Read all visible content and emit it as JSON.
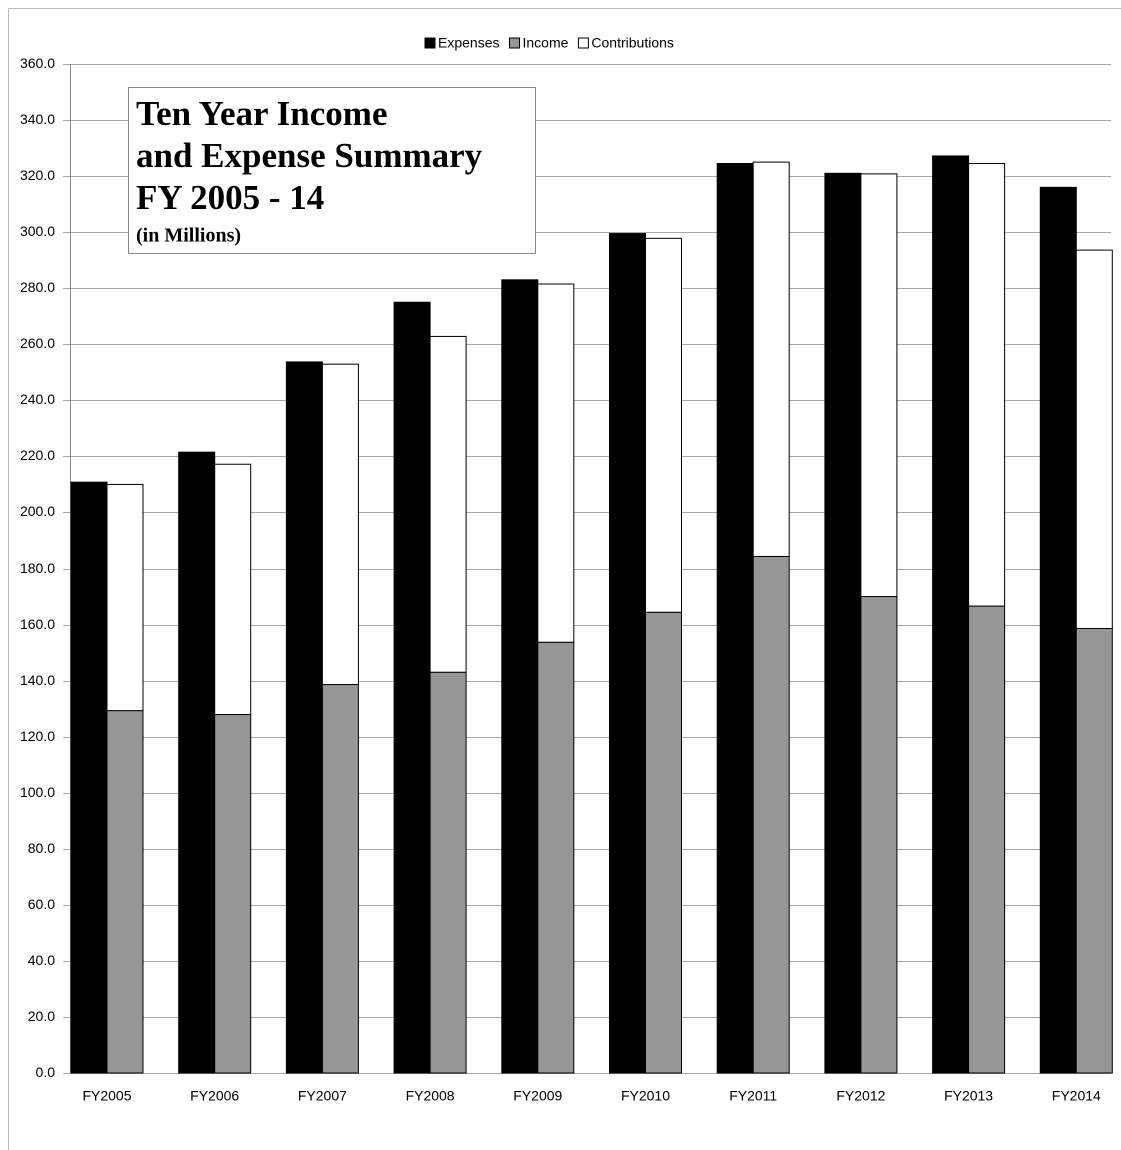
{
  "chart_data": {
    "type": "bar",
    "title": [
      "Ten Year Income",
      "and Expense Summary",
      "FY 2005 - 14"
    ],
    "subtitle": "(in Millions)",
    "categories": [
      "FY2005",
      "FY2006",
      "FY2007",
      "FY2008",
      "FY2009",
      "FY2010",
      "FY2011",
      "FY2012",
      "FY2013",
      "FY2014"
    ],
    "series": [
      {
        "name": "Expenses",
        "color": "#000000",
        "stack": "a",
        "values": [
          210.8,
          221.5,
          253.7,
          275.0,
          283.0,
          299.5,
          324.5,
          321.0,
          327.2,
          316.0
        ]
      },
      {
        "name": "Income",
        "color": "#969696",
        "stack": "b",
        "values": [
          129.3,
          127.9,
          138.6,
          143.0,
          153.7,
          164.4,
          184.3,
          170.0,
          166.6,
          158.6
        ]
      },
      {
        "name": "Contributions",
        "color": "#ffffff",
        "stack": "b",
        "values": [
          80.7,
          89.3,
          114.3,
          119.8,
          127.8,
          133.4,
          140.7,
          150.8,
          157.9,
          135.0
        ]
      }
    ],
    "ylim": [
      0,
      360
    ],
    "yticks": [
      {
        "value": 0,
        "label": "0.0"
      },
      {
        "value": 20,
        "label": "20.0"
      },
      {
        "value": 40,
        "label": "40.0"
      },
      {
        "value": 60,
        "label": "60.0"
      },
      {
        "value": 80,
        "label": "80.0"
      },
      {
        "value": 100,
        "label": "100.0"
      },
      {
        "value": 120,
        "label": "120.0"
      },
      {
        "value": 140,
        "label": "140.0"
      },
      {
        "value": 160,
        "label": "160.0"
      },
      {
        "value": 180,
        "label": "180.0"
      },
      {
        "value": 200,
        "label": "200.0"
      },
      {
        "value": 220,
        "label": "220.0"
      },
      {
        "value": 240,
        "label": "240.0"
      },
      {
        "value": 260,
        "label": "260.0"
      },
      {
        "value": 280,
        "label": "280.0"
      },
      {
        "value": 300,
        "label": "300.0"
      },
      {
        "value": 320,
        "label": "320.0"
      },
      {
        "value": 340,
        "label": "340.0"
      },
      {
        "value": 360,
        "label": "360.0"
      }
    ],
    "grid": true,
    "legend": "top"
  }
}
